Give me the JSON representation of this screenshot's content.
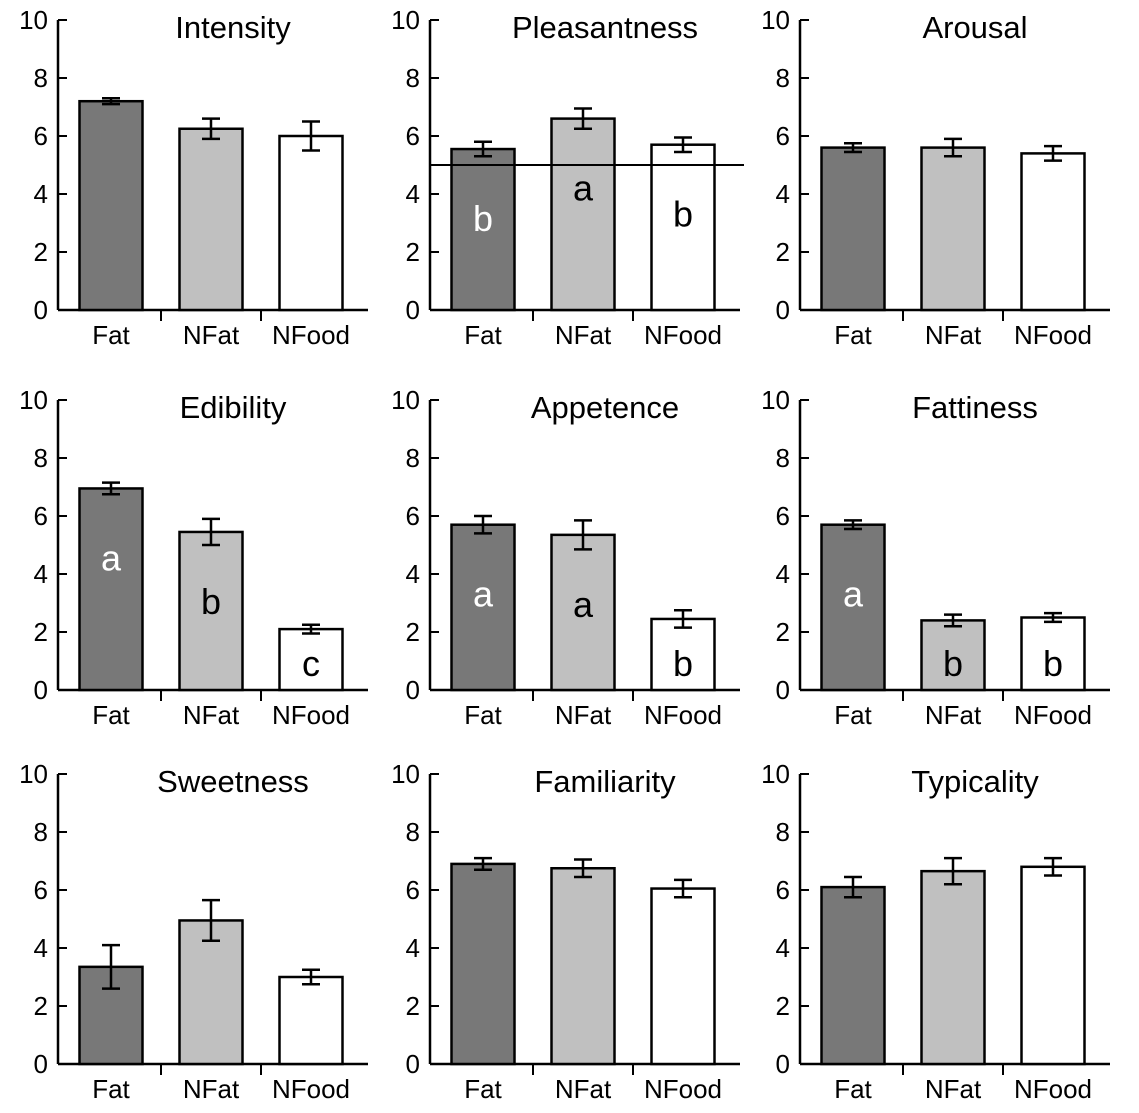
{
  "colors": {
    "Fat": "#787878",
    "NFat": "#c0c0c0",
    "NFood": "#ffffff",
    "stroke": "#000000"
  },
  "chart_data": [
    {
      "type": "bar",
      "title": "Intensity",
      "categories": [
        "Fat",
        "NFat",
        "NFood"
      ],
      "values": [
        7.2,
        6.25,
        6.0
      ],
      "errors": [
        0.1,
        0.35,
        0.5
      ],
      "letters": [
        "",
        "",
        ""
      ],
      "ylim": [
        0,
        10
      ],
      "yticks": [
        0,
        2,
        4,
        6,
        8,
        10
      ],
      "grid": false
    },
    {
      "type": "bar",
      "title": "Pleasantness",
      "categories": [
        "Fat",
        "NFat",
        "NFood"
      ],
      "values": [
        5.55,
        6.6,
        5.7
      ],
      "errors": [
        0.25,
        0.35,
        0.25
      ],
      "letters": [
        "b",
        "a",
        "b"
      ],
      "reference_line": 5,
      "ylim": [
        0,
        10
      ],
      "yticks": [
        0,
        2,
        4,
        6,
        8,
        10
      ],
      "grid": false
    },
    {
      "type": "bar",
      "title": "Arousal",
      "categories": [
        "Fat",
        "NFat",
        "NFood"
      ],
      "values": [
        5.6,
        5.6,
        5.4
      ],
      "errors": [
        0.15,
        0.3,
        0.25
      ],
      "letters": [
        "",
        "",
        ""
      ],
      "ylim": [
        0,
        10
      ],
      "yticks": [
        0,
        2,
        4,
        6,
        8,
        10
      ],
      "grid": false
    },
    {
      "type": "bar",
      "title": "Edibility",
      "categories": [
        "Fat",
        "NFat",
        "NFood"
      ],
      "values": [
        6.95,
        5.45,
        2.1
      ],
      "errors": [
        0.2,
        0.45,
        0.15
      ],
      "letters": [
        "a",
        "b",
        "c"
      ],
      "ylim": [
        0,
        10
      ],
      "yticks": [
        0,
        2,
        4,
        6,
        8,
        10
      ],
      "grid": false
    },
    {
      "type": "bar",
      "title": "Appetence",
      "categories": [
        "Fat",
        "NFat",
        "NFood"
      ],
      "values": [
        5.7,
        5.35,
        2.45
      ],
      "errors": [
        0.3,
        0.5,
        0.3
      ],
      "letters": [
        "a",
        "a",
        "b"
      ],
      "ylim": [
        0,
        10
      ],
      "yticks": [
        0,
        2,
        4,
        6,
        8,
        10
      ],
      "grid": false
    },
    {
      "type": "bar",
      "title": "Fattiness",
      "categories": [
        "Fat",
        "NFat",
        "NFood"
      ],
      "values": [
        5.7,
        2.4,
        2.5
      ],
      "errors": [
        0.15,
        0.2,
        0.15
      ],
      "letters": [
        "a",
        "b",
        "b"
      ],
      "ylim": [
        0,
        10
      ],
      "yticks": [
        0,
        2,
        4,
        6,
        8,
        10
      ],
      "grid": false
    },
    {
      "type": "bar",
      "title": "Sweetness",
      "categories": [
        "Fat",
        "NFat",
        "NFood"
      ],
      "values": [
        3.35,
        4.95,
        3.0
      ],
      "errors": [
        0.75,
        0.7,
        0.25
      ],
      "letters": [
        "",
        "",
        ""
      ],
      "ylim": [
        0,
        10
      ],
      "yticks": [
        0,
        2,
        4,
        6,
        8,
        10
      ],
      "grid": false
    },
    {
      "type": "bar",
      "title": "Familiarity",
      "categories": [
        "Fat",
        "NFat",
        "NFood"
      ],
      "values": [
        6.9,
        6.75,
        6.05
      ],
      "errors": [
        0.2,
        0.3,
        0.3
      ],
      "letters": [
        "",
        "",
        ""
      ],
      "ylim": [
        0,
        10
      ],
      "yticks": [
        0,
        2,
        4,
        6,
        8,
        10
      ],
      "grid": false
    },
    {
      "type": "bar",
      "title": "Typicality",
      "categories": [
        "Fat",
        "NFat",
        "NFood"
      ],
      "values": [
        6.1,
        6.65,
        6.8
      ],
      "errors": [
        0.35,
        0.45,
        0.3
      ],
      "letters": [
        "",
        "",
        ""
      ],
      "ylim": [
        0,
        10
      ],
      "yticks": [
        0,
        2,
        4,
        6,
        8,
        10
      ],
      "grid": false
    }
  ]
}
